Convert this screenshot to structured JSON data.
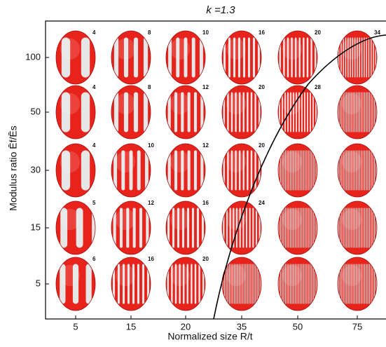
{
  "chart_data": {
    "type": "grid",
    "title": "k =1.3",
    "x_label": "Normalized size R/t",
    "y_label": "Modulus ratio Ēf/Ēs",
    "categories": [
      "5",
      "15",
      "20",
      "35",
      "50",
      "75"
    ],
    "rows": [
      "100",
      "50",
      "30",
      "15",
      "5"
    ],
    "labels": [
      [
        4,
        8,
        10,
        16,
        20,
        34
      ],
      [
        4,
        8,
        12,
        20,
        28,
        null
      ],
      [
        4,
        10,
        12,
        20,
        null,
        null
      ],
      [
        5,
        12,
        16,
        24,
        null,
        null
      ],
      [
        6,
        16,
        20,
        null,
        null,
        null
      ]
    ]
  }
}
